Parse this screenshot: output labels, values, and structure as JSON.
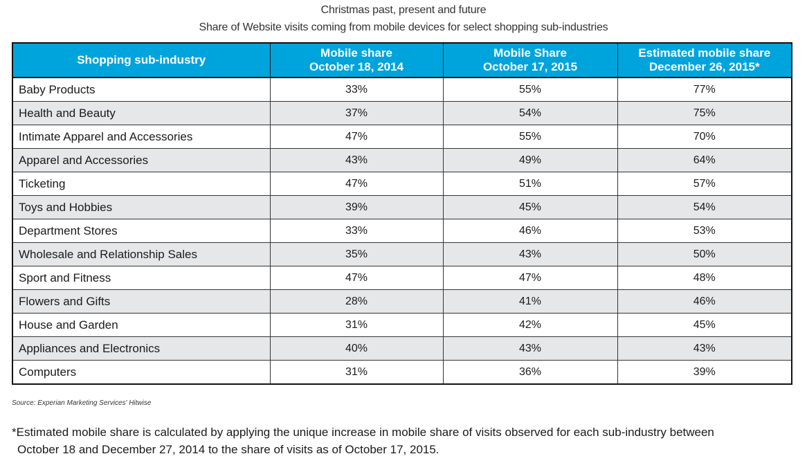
{
  "title": "Christmas past, present and future",
  "subtitle": "Share of Website visits coming from mobile devices for select shopping sub-industries",
  "header_color": "#00a4dc",
  "stripe_color": "#e6e7e9",
  "columns": [
    {
      "line1": "Shopping sub-industry",
      "line2": ""
    },
    {
      "line1": "Mobile share",
      "line2": "October 18, 2014"
    },
    {
      "line1": "Mobile Share",
      "line2": "October 17, 2015"
    },
    {
      "line1": "Estimated mobile share",
      "line2": "December 26, 2015*"
    }
  ],
  "rows": [
    {
      "name": "Baby Products",
      "v2014": "33%",
      "v2015": "55%",
      "est": "77%"
    },
    {
      "name": "Health and Beauty",
      "v2014": "37%",
      "v2015": "54%",
      "est": "75%"
    },
    {
      "name": "Intimate Apparel and Accessories",
      "v2014": "47%",
      "v2015": "55%",
      "est": "70%"
    },
    {
      "name": "Apparel and Accessories",
      "v2014": "43%",
      "v2015": "49%",
      "est": "64%"
    },
    {
      "name": "Ticketing",
      "v2014": "47%",
      "v2015": "51%",
      "est": "57%"
    },
    {
      "name": "Toys and Hobbies",
      "v2014": "39%",
      "v2015": "45%",
      "est": "54%"
    },
    {
      "name": "Department Stores",
      "v2014": "33%",
      "v2015": "46%",
      "est": "53%"
    },
    {
      "name": "Wholesale and Relationship Sales",
      "v2014": "35%",
      "v2015": "43%",
      "est": "50%"
    },
    {
      "name": "Sport and Fitness",
      "v2014": "47%",
      "v2015": "47%",
      "est": "48%"
    },
    {
      "name": "Flowers and Gifts",
      "v2014": "28%",
      "v2015": "41%",
      "est": "46%"
    },
    {
      "name": "House and Garden",
      "v2014": "31%",
      "v2015": "42%",
      "est": "45%"
    },
    {
      "name": "Appliances and Electronics",
      "v2014": "40%",
      "v2015": "43%",
      "est": "43%"
    },
    {
      "name": "Computers",
      "v2014": "31%",
      "v2015": "36%",
      "est": "39%"
    }
  ],
  "source": "Source: Experian Marketing Services' Hitwise",
  "footnote_line1": "*Estimated mobile share is calculated by applying the unique increase in mobile share of visits observed for each sub-industry between",
  "footnote_line2": "October 18 and December 27, 2014 to the share of visits as of October 17, 2015.",
  "chart_data": {
    "type": "table",
    "title": "Christmas past, present and future",
    "subtitle": "Share of Website visits coming from mobile devices for select shopping sub-industries",
    "columns": [
      "Shopping sub-industry",
      "Mobile share October 18, 2014",
      "Mobile Share October 17, 2015",
      "Estimated mobile share December 26, 2015*"
    ],
    "categories": [
      "Baby Products",
      "Health and Beauty",
      "Intimate Apparel and Accessories",
      "Apparel and Accessories",
      "Ticketing",
      "Toys and Hobbies",
      "Department Stores",
      "Wholesale and Relationship Sales",
      "Sport and Fitness",
      "Flowers and Gifts",
      "House and Garden",
      "Appliances and Electronics",
      "Computers"
    ],
    "series": [
      {
        "name": "Mobile share October 18, 2014",
        "values": [
          33,
          37,
          47,
          43,
          47,
          39,
          33,
          35,
          47,
          28,
          31,
          40,
          31
        ]
      },
      {
        "name": "Mobile Share October 17, 2015",
        "values": [
          55,
          54,
          55,
          49,
          51,
          45,
          46,
          43,
          47,
          41,
          42,
          43,
          36
        ]
      },
      {
        "name": "Estimated mobile share December 26, 2015*",
        "values": [
          77,
          75,
          70,
          64,
          57,
          54,
          53,
          50,
          48,
          46,
          45,
          43,
          39
        ]
      }
    ],
    "unit": "%"
  }
}
